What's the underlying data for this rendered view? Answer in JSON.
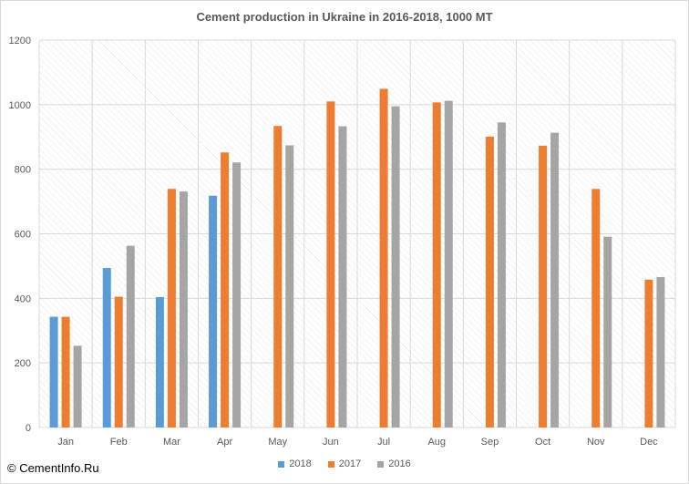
{
  "chart_data": {
    "type": "bar",
    "title": "Cement production in Ukraine in 2016-2018, 1000 MT",
    "xlabel": "",
    "ylabel": "",
    "ylim": [
      0,
      1200
    ],
    "yticks": [
      0,
      200,
      400,
      600,
      800,
      1000,
      1200
    ],
    "grid": true,
    "legend_position": "bottom",
    "categories": [
      "Jan",
      "Feb",
      "Mar",
      "Apr",
      "May",
      "Jun",
      "Jul",
      "Aug",
      "Sep",
      "Oct",
      "Nov",
      "Dec"
    ],
    "series": [
      {
        "name": "2018",
        "color": "#5b9bd5",
        "values": [
          343,
          494,
          404,
          718,
          null,
          null,
          null,
          null,
          null,
          null,
          null,
          null
        ]
      },
      {
        "name": "2017",
        "color": "#ed7d31",
        "values": [
          343,
          405,
          739,
          852,
          934,
          1010,
          1049,
          1007,
          901,
          873,
          739,
          458
        ]
      },
      {
        "name": "2016",
        "color": "#a5a5a5",
        "values": [
          253,
          563,
          731,
          821,
          874,
          933,
          995,
          1012,
          945,
          913,
          591,
          466
        ]
      }
    ]
  },
  "watermark": "© CementInfo.Ru"
}
